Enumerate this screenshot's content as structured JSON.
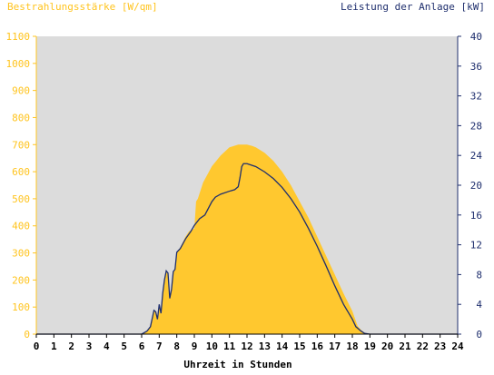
{
  "chart_data": {
    "type": "area",
    "left_axis_title": "Bestrahlungsstärke [W/qm]",
    "right_axis_title": "Leistung der Anlage [kW]",
    "xlabel": "Uhrzeit in Stunden",
    "xlim": [
      0,
      24
    ],
    "ylim_left": [
      0,
      1100
    ],
    "ylim_right": [
      0,
      40
    ],
    "x_ticks": [
      0,
      1,
      2,
      3,
      4,
      5,
      6,
      7,
      8,
      9,
      10,
      11,
      12,
      13,
      14,
      15,
      16,
      17,
      18,
      19,
      20,
      21,
      22,
      23,
      24
    ],
    "y_ticks_left": [
      0,
      100,
      200,
      300,
      400,
      500,
      600,
      700,
      800,
      900,
      1000,
      1100
    ],
    "y_ticks_right": [
      0,
      4,
      8,
      12,
      16,
      20,
      24,
      28,
      32,
      36,
      40
    ],
    "grid": false,
    "colors": {
      "plot_background": "#dcdcdc",
      "irradiance_fill": "#ffc82f",
      "power_line": "#1f2f6e",
      "left_axis_text": "#ffc41f",
      "right_axis_text": "#1f2f6e"
    },
    "series": [
      {
        "name": "Bestrahlungsstärke [W/qm]",
        "axis": "left",
        "kind": "area",
        "x": [
          0,
          6.0,
          6.3,
          6.5,
          6.7,
          6.8,
          6.9,
          7.0,
          7.1,
          7.2,
          7.3,
          7.4,
          7.5,
          7.6,
          7.7,
          7.8,
          7.9,
          8.0,
          8.1,
          8.2,
          8.5,
          8.7,
          9.0,
          9.1,
          9.2,
          9.5,
          10.0,
          10.5,
          11.0,
          11.5,
          12.0,
          12.3,
          12.5,
          13.0,
          13.5,
          14.0,
          14.5,
          15.0,
          15.5,
          16.0,
          16.5,
          17.0,
          17.5,
          18.0,
          18.3,
          18.5,
          18.7,
          19.0,
          24
        ],
        "y": [
          0,
          0,
          10,
          30,
          90,
          85,
          60,
          110,
          80,
          150,
          200,
          230,
          220,
          130,
          160,
          230,
          240,
          300,
          310,
          320,
          360,
          380,
          390,
          490,
          500,
          560,
          620,
          660,
          690,
          700,
          700,
          695,
          690,
          670,
          640,
          600,
          550,
          490,
          430,
          360,
          290,
          220,
          150,
          85,
          30,
          15,
          5,
          0,
          0
        ]
      },
      {
        "name": "Leistung der Anlage [kW]",
        "axis": "right",
        "kind": "line",
        "x": [
          0,
          6.0,
          6.3,
          6.5,
          6.7,
          6.8,
          6.9,
          7.0,
          7.1,
          7.2,
          7.3,
          7.4,
          7.5,
          7.6,
          7.7,
          7.8,
          7.9,
          8.0,
          8.2,
          8.5,
          8.8,
          9.0,
          9.3,
          9.6,
          10.0,
          10.2,
          10.5,
          11.0,
          11.3,
          11.5,
          11.6,
          11.7,
          11.8,
          12.0,
          12.5,
          13.0,
          13.5,
          14.0,
          14.5,
          15.0,
          15.5,
          16.0,
          16.5,
          17.0,
          17.5,
          18.0,
          18.2,
          18.5,
          18.7,
          19.0,
          24
        ],
        "y": [
          0,
          0,
          0.4,
          1.0,
          3.2,
          3.0,
          2.0,
          4.0,
          2.8,
          5.5,
          7.3,
          8.5,
          8.2,
          4.8,
          6.0,
          8.4,
          8.7,
          11.0,
          11.5,
          12.8,
          13.8,
          14.6,
          15.5,
          16.0,
          17.8,
          18.4,
          18.8,
          19.2,
          19.4,
          19.8,
          21.0,
          22.5,
          22.9,
          22.9,
          22.5,
          21.8,
          20.9,
          19.7,
          18.2,
          16.4,
          14.2,
          11.8,
          9.2,
          6.5,
          4.0,
          2.0,
          1.0,
          0.4,
          0.1,
          0,
          0
        ]
      }
    ]
  }
}
